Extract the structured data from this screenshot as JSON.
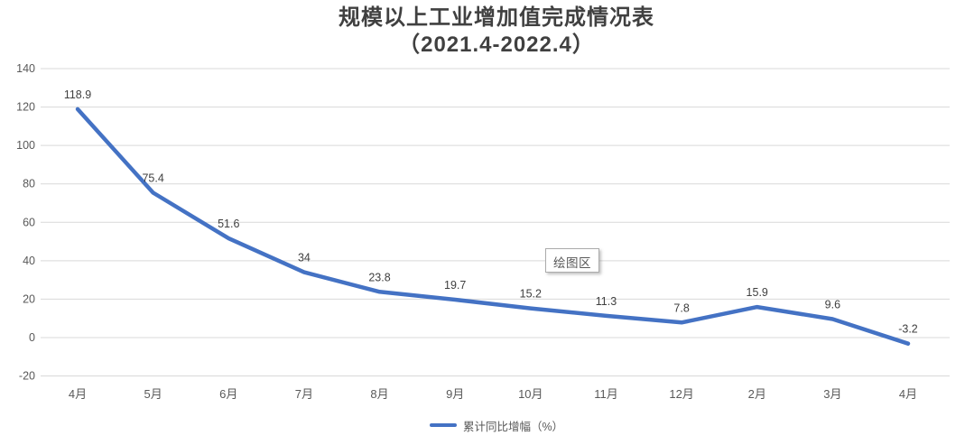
{
  "title": {
    "line1": "规模以上工业增加值完成情况表",
    "line2": "（2021.4-2022.4）"
  },
  "tooltip": {
    "label": "绘图区"
  },
  "legend": {
    "label": "累计同比增幅（%）"
  },
  "colors": {
    "series": "#4472C4",
    "gridline": "#D9D9D9",
    "axis_text": "#595959",
    "label_text": "#404040",
    "title_text": "#404040",
    "tooltip_border": "#ABABAB",
    "background": "#FFFFFF"
  },
  "chart_data": {
    "type": "line",
    "title": "规模以上工业增加值完成情况表（2021.4-2022.4）",
    "categories": [
      "4月",
      "5月",
      "6月",
      "7月",
      "8月",
      "9月",
      "10月",
      "11月",
      "12月",
      "2月",
      "3月",
      "4月"
    ],
    "series": [
      {
        "name": "累计同比增幅（%）",
        "values": [
          118.9,
          75.4,
          51.6,
          34,
          23.8,
          19.7,
          15.2,
          11.3,
          7.8,
          15.9,
          9.6,
          -3.2
        ]
      }
    ],
    "data_labels": [
      "118.9",
      "75.4",
      "51.6",
      "34",
      "23.8",
      "19.7",
      "15.2",
      "11.3",
      "7.8",
      "15.9",
      "9.6",
      "-3.2"
    ],
    "y_ticks": [
      -20,
      0,
      20,
      40,
      60,
      80,
      100,
      120,
      140
    ],
    "ylim": [
      -20,
      140
    ],
    "xlabel": "",
    "ylabel": "",
    "grid": true,
    "legend_position": "bottom",
    "plot_area_label": "绘图区"
  }
}
